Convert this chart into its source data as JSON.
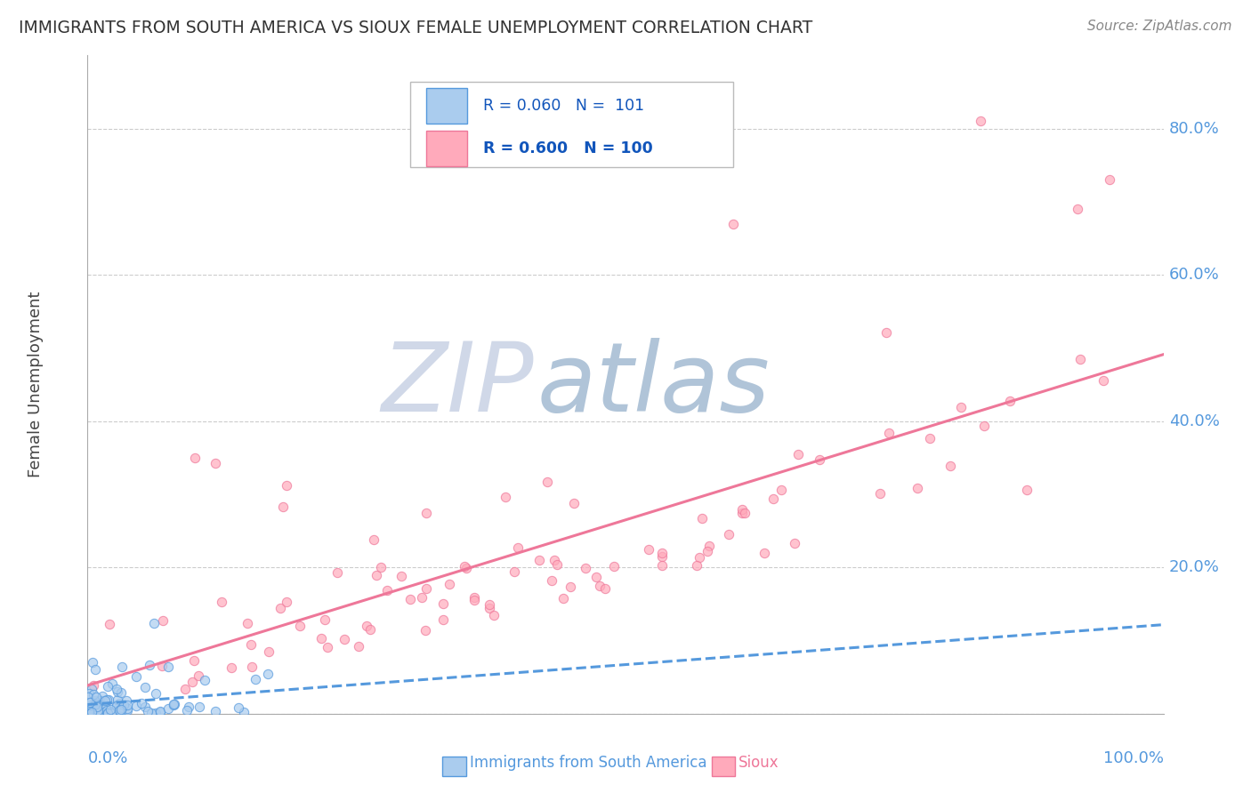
{
  "title": "IMMIGRANTS FROM SOUTH AMERICA VS SIOUX FEMALE UNEMPLOYMENT CORRELATION CHART",
  "source": "Source: ZipAtlas.com",
  "ylabel": "Female Unemployment",
  "yticks": [
    0.0,
    0.2,
    0.4,
    0.6,
    0.8
  ],
  "xlim": [
    0.0,
    1.0
  ],
  "ylim": [
    0.0,
    0.9
  ],
  "blue_line_color": "#5599dd",
  "pink_line_color": "#ee7799",
  "blue_dot_face": "#aaccee",
  "blue_dot_edge": "#5599dd",
  "pink_dot_face": "#ffaabb",
  "pink_dot_edge": "#ee7799",
  "watermark_zip_color": "#d0d8e8",
  "watermark_atlas_color": "#b0c4d8",
  "grid_color": "#cccccc",
  "title_color": "#333333",
  "legend_text_color": "#1155bb",
  "source_color": "#888888"
}
